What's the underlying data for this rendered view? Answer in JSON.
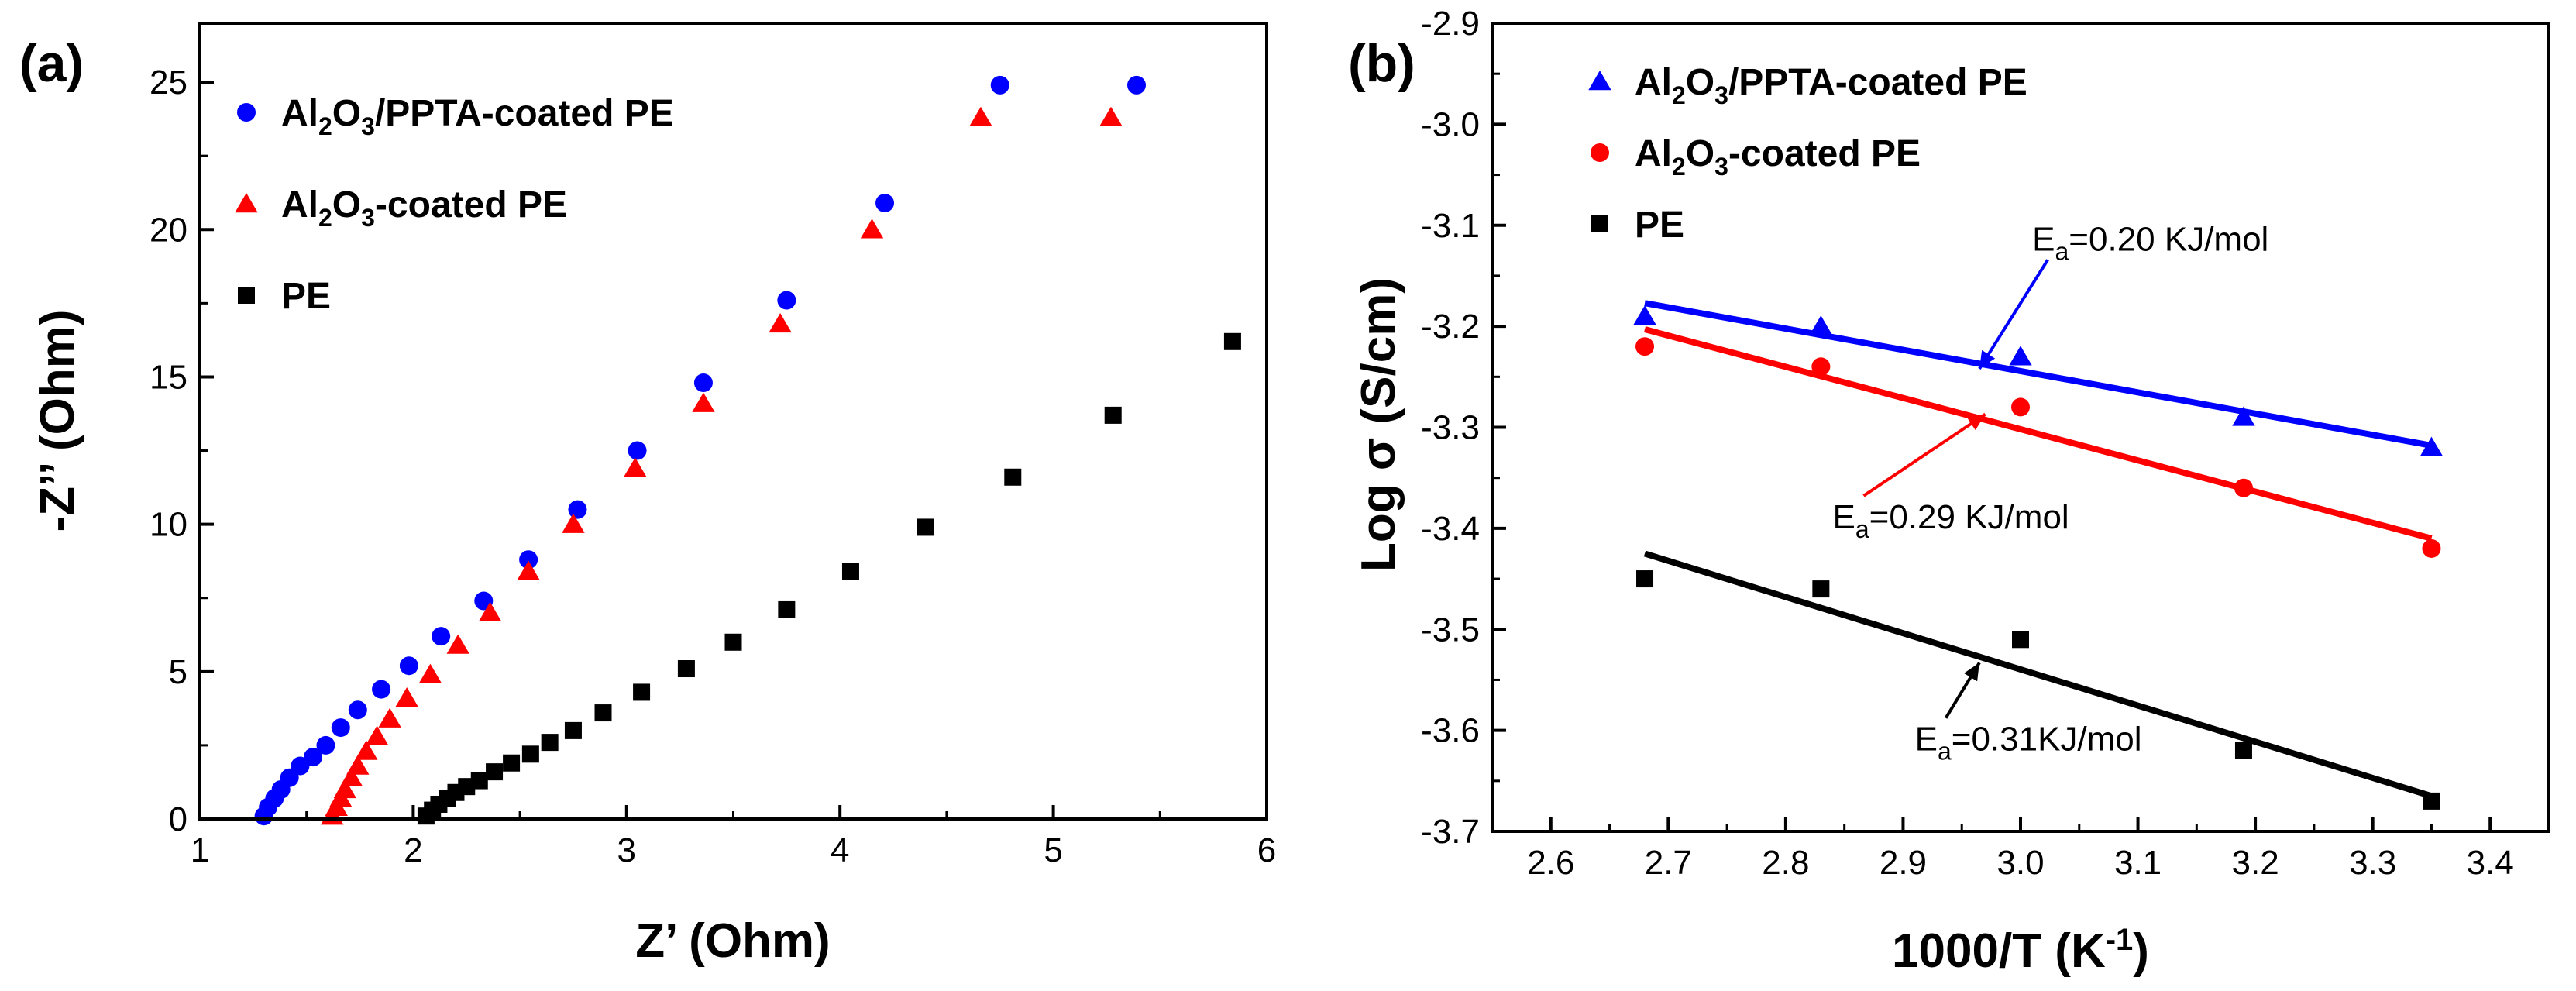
{
  "chart_data": [
    {
      "panel_label": "(a)",
      "type": "scatter",
      "xlabel": "Z’ (Ohm)",
      "ylabel": "-Z’’ (Ohm)",
      "xlim": [
        1,
        6
      ],
      "ylim": [
        0,
        27
      ],
      "xticks": [
        1,
        2,
        3,
        4,
        5,
        6
      ],
      "yticks": [
        0,
        5,
        10,
        15,
        20,
        25
      ],
      "legend_position": "top-left",
      "series": [
        {
          "name": "Al2O3/PPTA-coated PE",
          "color": "#0000ff",
          "marker": "circle",
          "x": [
            1.3,
            1.32,
            1.35,
            1.38,
            1.42,
            1.47,
            1.53,
            1.59,
            1.66,
            1.74,
            1.85,
            1.98,
            2.13,
            2.33,
            2.54,
            2.77,
            3.05,
            3.36,
            3.75,
            4.21,
            4.75,
            5.39
          ],
          "y": [
            0.1,
            0.4,
            0.7,
            1.0,
            1.4,
            1.8,
            2.1,
            2.5,
            3.1,
            3.7,
            4.4,
            5.2,
            6.2,
            7.4,
            8.8,
            10.5,
            12.5,
            14.8,
            17.6,
            20.9,
            24.9,
            24.9
          ]
        },
        {
          "name": "Al2O3-coated PE",
          "color": "#ff0000",
          "marker": "triangle",
          "x": [
            1.62,
            1.64,
            1.66,
            1.68,
            1.71,
            1.74,
            1.78,
            1.83,
            1.89,
            1.97,
            2.08,
            2.21,
            2.36,
            2.54,
            2.75,
            3.04,
            3.36,
            3.72,
            4.15,
            4.66,
            5.27
          ],
          "y": [
            0.1,
            0.4,
            0.7,
            1.0,
            1.4,
            1.8,
            2.3,
            2.8,
            3.4,
            4.1,
            4.9,
            5.9,
            7.0,
            8.4,
            10.0,
            11.9,
            14.1,
            16.8,
            20.0,
            23.8,
            23.8
          ]
        },
        {
          "name": "PE",
          "color": "#000000",
          "marker": "square",
          "x": [
            2.06,
            2.09,
            2.12,
            2.16,
            2.2,
            2.25,
            2.31,
            2.38,
            2.46,
            2.55,
            2.64,
            2.75,
            2.89,
            3.07,
            3.28,
            3.5,
            3.75,
            4.05,
            4.4,
            4.81,
            5.28,
            5.84
          ],
          "y": [
            0.1,
            0.3,
            0.5,
            0.7,
            0.9,
            1.1,
            1.3,
            1.6,
            1.9,
            2.2,
            2.6,
            3.0,
            3.6,
            4.3,
            5.1,
            6.0,
            7.1,
            8.4,
            9.9,
            11.6,
            13.7,
            16.2
          ]
        }
      ]
    },
    {
      "panel_label": "(b)",
      "type": "scatter",
      "xlabel": "1000/T (K-1)",
      "ylabel": "Log σ (S/cm)",
      "xlim": [
        2.55,
        3.45
      ],
      "ylim": [
        -3.7,
        -2.9
      ],
      "xticks": [
        2.6,
        2.7,
        2.8,
        2.9,
        3.0,
        3.1,
        3.2,
        3.3,
        3.4
      ],
      "yticks": [
        -3.7,
        -3.6,
        -3.5,
        -3.4,
        -3.3,
        -3.2,
        -3.1,
        -3.0,
        -2.9
      ],
      "legend_position": "top-left",
      "series": [
        {
          "name": "Al2O3/PPTA-coated PE",
          "color": "#0000ff",
          "marker": "triangle",
          "x": [
            2.68,
            2.83,
            3.0,
            3.19,
            3.35
          ],
          "y": [
            -3.19,
            -3.2,
            -3.23,
            -3.29,
            -3.32
          ],
          "fit": [
            [
              2.68,
              -3.177
            ],
            [
              3.35,
              -3.318
            ]
          ]
        },
        {
          "name": "Al2O3-coated PE",
          "color": "#ff0000",
          "marker": "circle",
          "x": [
            2.68,
            2.83,
            3.0,
            3.19,
            3.35
          ],
          "y": [
            -3.22,
            -3.24,
            -3.28,
            -3.36,
            -3.42
          ],
          "fit": [
            [
              2.68,
              -3.203
            ],
            [
              3.35,
              -3.41
            ]
          ]
        },
        {
          "name": "PE",
          "color": "#000000",
          "marker": "square",
          "x": [
            2.68,
            2.83,
            3.0,
            3.19,
            3.35
          ],
          "y": [
            -3.45,
            -3.46,
            -3.51,
            -3.62,
            -3.67
          ],
          "fit": [
            [
              2.68,
              -3.425
            ],
            [
              3.35,
              -3.665
            ]
          ]
        }
      ],
      "annotations": [
        {
          "text": "Ea=0.20 KJ/mol",
          "color": "#0000ff",
          "arrow_to": [
            2.965,
            -3.242
          ],
          "text_at": [
            3.01,
            -3.125
          ]
        },
        {
          "text": "Ea=0.29 KJ/mol",
          "color": "#ff0000",
          "arrow_to": [
            2.97,
            -3.287
          ],
          "text_at": [
            2.84,
            -3.4
          ]
        },
        {
          "text": "Ea=0.31KJ/mol",
          "color": "#000000",
          "arrow_to": [
            2.965,
            -3.533
          ],
          "text_at": [
            2.91,
            -3.62
          ]
        }
      ]
    }
  ]
}
